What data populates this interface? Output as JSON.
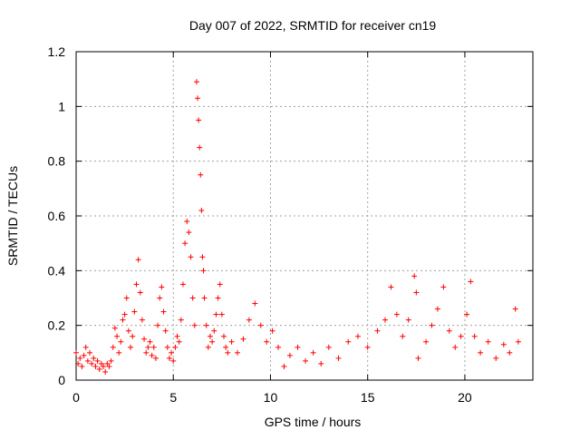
{
  "chart_data": {
    "type": "scatter",
    "title": "Day 007 of 2022, SRMTID for receiver cn19",
    "xlabel": "GPS time / hours",
    "ylabel": "SRMTID / TECUs",
    "xlim": [
      0,
      23.5
    ],
    "ylim": [
      0,
      1.2
    ],
    "x_ticks": [
      0,
      5,
      10,
      15,
      20
    ],
    "y_ticks": [
      0,
      0.2,
      0.4,
      0.6,
      0.8,
      1,
      1.2
    ],
    "x_tick_labels": [
      "0",
      "5",
      "10",
      "15",
      "20"
    ],
    "y_tick_labels": [
      "0",
      "0.2",
      "0.4",
      "0.6",
      "0.8",
      "1",
      "1.2"
    ],
    "grid": true,
    "marker": "+",
    "series": [
      {
        "name": "SRMTID",
        "color": "#ff0000",
        "points": [
          [
            0.0,
            0.1
          ],
          [
            0.1,
            0.06
          ],
          [
            0.2,
            0.08
          ],
          [
            0.3,
            0.05
          ],
          [
            0.4,
            0.09
          ],
          [
            0.5,
            0.12
          ],
          [
            0.6,
            0.07
          ],
          [
            0.7,
            0.1
          ],
          [
            0.8,
            0.06
          ],
          [
            0.9,
            0.08
          ],
          [
            1.0,
            0.05
          ],
          [
            1.1,
            0.07
          ],
          [
            1.2,
            0.04
          ],
          [
            1.3,
            0.06
          ],
          [
            1.4,
            0.05
          ],
          [
            1.5,
            0.03
          ],
          [
            1.6,
            0.06
          ],
          [
            1.7,
            0.05
          ],
          [
            1.8,
            0.07
          ],
          [
            1.9,
            0.12
          ],
          [
            2.0,
            0.19
          ],
          [
            2.1,
            0.16
          ],
          [
            2.2,
            0.1
          ],
          [
            2.3,
            0.14
          ],
          [
            2.4,
            0.22
          ],
          [
            2.5,
            0.24
          ],
          [
            2.6,
            0.3
          ],
          [
            2.7,
            0.18
          ],
          [
            2.8,
            0.12
          ],
          [
            2.9,
            0.16
          ],
          [
            3.0,
            0.25
          ],
          [
            3.1,
            0.35
          ],
          [
            3.2,
            0.44
          ],
          [
            3.3,
            0.32
          ],
          [
            3.4,
            0.22
          ],
          [
            3.5,
            0.15
          ],
          [
            3.6,
            0.1
          ],
          [
            3.7,
            0.12
          ],
          [
            3.8,
            0.14
          ],
          [
            3.9,
            0.09
          ],
          [
            4.0,
            0.12
          ],
          [
            4.1,
            0.08
          ],
          [
            4.2,
            0.2
          ],
          [
            4.3,
            0.3
          ],
          [
            4.4,
            0.34
          ],
          [
            4.5,
            0.25
          ],
          [
            4.6,
            0.18
          ],
          [
            4.7,
            0.12
          ],
          [
            4.8,
            0.08
          ],
          [
            4.9,
            0.1
          ],
          [
            5.0,
            0.07
          ],
          [
            5.1,
            0.12
          ],
          [
            5.2,
            0.16
          ],
          [
            5.3,
            0.14
          ],
          [
            5.4,
            0.22
          ],
          [
            5.5,
            0.35
          ],
          [
            5.6,
            0.5
          ],
          [
            5.7,
            0.58
          ],
          [
            5.8,
            0.54
          ],
          [
            5.9,
            0.45
          ],
          [
            6.0,
            0.3
          ],
          [
            6.1,
            0.2
          ],
          [
            6.2,
            1.09
          ],
          [
            6.25,
            1.03
          ],
          [
            6.3,
            0.95
          ],
          [
            6.35,
            0.85
          ],
          [
            6.4,
            0.75
          ],
          [
            6.45,
            0.62
          ],
          [
            6.5,
            0.45
          ],
          [
            6.55,
            0.4
          ],
          [
            6.6,
            0.3
          ],
          [
            6.7,
            0.2
          ],
          [
            6.8,
            0.12
          ],
          [
            6.9,
            0.16
          ],
          [
            7.0,
            0.14
          ],
          [
            7.1,
            0.18
          ],
          [
            7.2,
            0.24
          ],
          [
            7.3,
            0.3
          ],
          [
            7.4,
            0.35
          ],
          [
            7.5,
            0.24
          ],
          [
            7.6,
            0.16
          ],
          [
            7.7,
            0.12
          ],
          [
            7.8,
            0.1
          ],
          [
            8.0,
            0.14
          ],
          [
            8.3,
            0.1
          ],
          [
            8.6,
            0.15
          ],
          [
            8.9,
            0.22
          ],
          [
            9.2,
            0.28
          ],
          [
            9.5,
            0.2
          ],
          [
            9.8,
            0.14
          ],
          [
            10.1,
            0.18
          ],
          [
            10.4,
            0.12
          ],
          [
            10.7,
            0.05
          ],
          [
            11.0,
            0.09
          ],
          [
            11.4,
            0.12
          ],
          [
            11.8,
            0.07
          ],
          [
            12.2,
            0.1
          ],
          [
            12.6,
            0.06
          ],
          [
            13.0,
            0.12
          ],
          [
            13.5,
            0.08
          ],
          [
            14.0,
            0.14
          ],
          [
            14.5,
            0.16
          ],
          [
            15.0,
            0.12
          ],
          [
            15.5,
            0.18
          ],
          [
            15.9,
            0.22
          ],
          [
            16.2,
            0.34
          ],
          [
            16.5,
            0.24
          ],
          [
            16.8,
            0.16
          ],
          [
            17.1,
            0.22
          ],
          [
            17.4,
            0.38
          ],
          [
            17.5,
            0.32
          ],
          [
            17.6,
            0.08
          ],
          [
            18.0,
            0.14
          ],
          [
            18.3,
            0.2
          ],
          [
            18.6,
            0.26
          ],
          [
            18.9,
            0.34
          ],
          [
            19.2,
            0.18
          ],
          [
            19.5,
            0.12
          ],
          [
            19.8,
            0.16
          ],
          [
            20.1,
            0.24
          ],
          [
            20.3,
            0.36
          ],
          [
            20.5,
            0.16
          ],
          [
            20.8,
            0.1
          ],
          [
            21.2,
            0.14
          ],
          [
            21.6,
            0.08
          ],
          [
            22.0,
            0.13
          ],
          [
            22.3,
            0.1
          ],
          [
            22.6,
            0.26
          ],
          [
            22.75,
            0.14
          ]
        ]
      }
    ]
  }
}
